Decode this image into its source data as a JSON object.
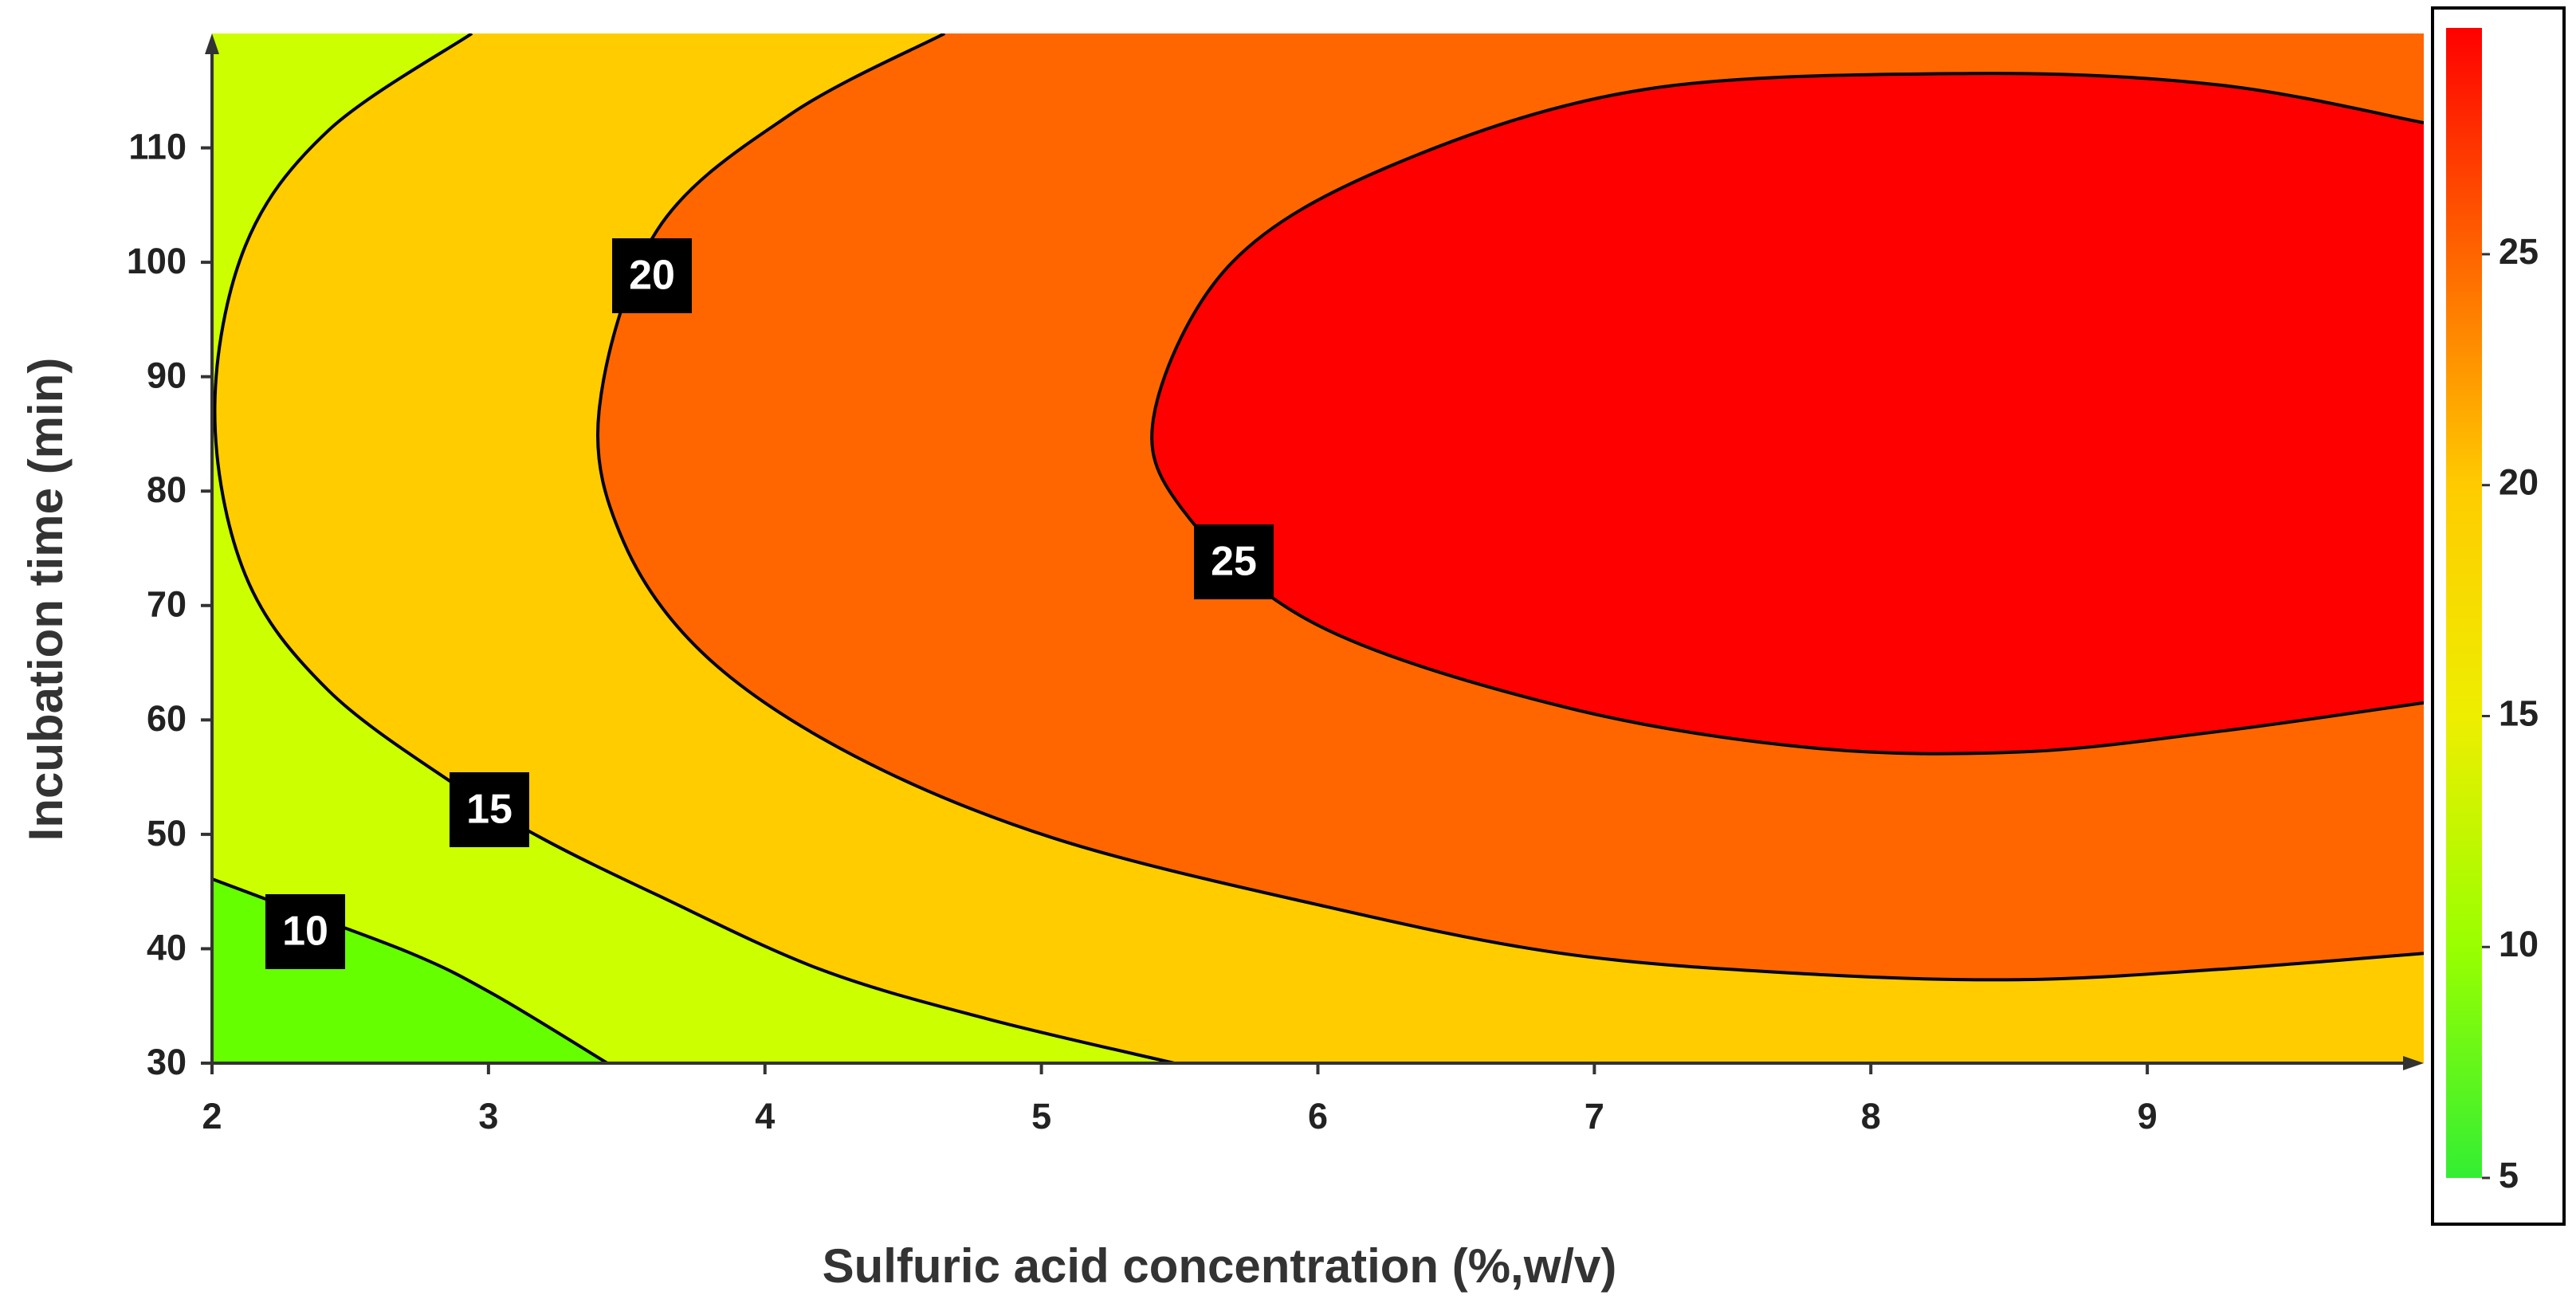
{
  "chart_data": {
    "type": "contour",
    "x_label": "Sulfuric acid concentration (%,w/v)",
    "y_label": "Incubation time (min)",
    "xlim": [
      2,
      10
    ],
    "ylim": [
      30,
      120
    ],
    "xticks": [
      2,
      3,
      4,
      5,
      6,
      7,
      8,
      9
    ],
    "yticks": [
      30,
      40,
      50,
      60,
      70,
      80,
      90,
      100,
      110
    ],
    "base_color": "#66ff00",
    "contours": [
      {
        "level": 10,
        "color": "#ccff00",
        "x": [
          2,
          2.21,
          2.72,
          3.02,
          3.43
        ],
        "y": [
          46.1,
          44.2,
          39.6,
          36.0,
          30
        ]
      },
      {
        "level": 15,
        "color": "#ffcc00",
        "x": [
          2.94,
          2.42,
          2.12,
          2.01,
          2.12,
          2.42,
          2.9,
          3.19,
          3.61,
          4.2,
          4.8,
          5.48
        ],
        "y": [
          120,
          111.5,
          101.4,
          87,
          72.7,
          62.6,
          54,
          49.7,
          44.7,
          38.2,
          33.9,
          30
        ]
      },
      {
        "level": 20,
        "color": "#ff6600",
        "x": [
          4.65,
          4.09,
          3.61,
          3.4,
          3.49,
          3.79,
          4.32,
          5.04,
          5.99,
          6.88,
          7.77,
          8.54,
          9.26,
          10
        ],
        "y": [
          120,
          112.9,
          102.8,
          87,
          75.5,
          65.5,
          56.9,
          49.7,
          43.9,
          39.6,
          37.8,
          37.3,
          38.2,
          39.6
        ]
      },
      {
        "level": 25,
        "color": "#ff0000",
        "x": [
          10,
          9.26,
          8.36,
          7.18,
          6.28,
          5.69,
          5.41,
          5.51,
          5.99,
          6.88,
          7.77,
          8.54,
          9.26,
          10
        ],
        "y": [
          112.2,
          115.5,
          116.5,
          115.1,
          108.6,
          100,
          87,
          78.4,
          68.4,
          61.2,
          57.6,
          57.2,
          59,
          61.5
        ]
      }
    ],
    "colorbar": {
      "lim": [
        5,
        29.9
      ],
      "ticks": [
        5,
        10,
        15,
        20,
        25
      ],
      "colors": [
        "#33ee33",
        "#99ff00",
        "#eeee00",
        "#ffcc00",
        "#ff6600",
        "#ff0000"
      ]
    }
  }
}
